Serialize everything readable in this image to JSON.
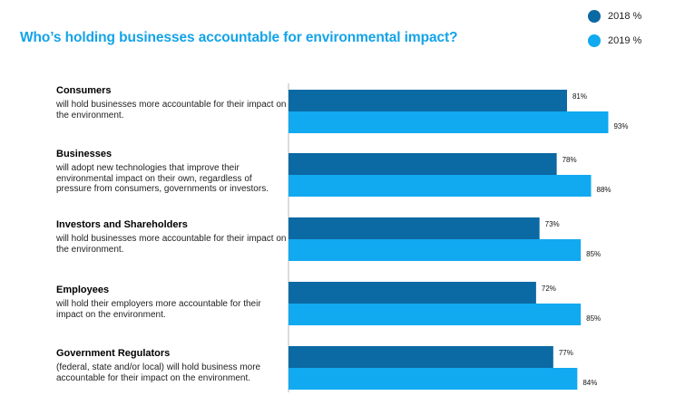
{
  "title": "Who’s holding businesses accountable for environmental impact?",
  "legend": [
    {
      "label": "2018 %",
      "color": "#0b69a3"
    },
    {
      "label": "2019 %",
      "color": "#11a9f0"
    }
  ],
  "categories": [
    {
      "name": "Consumers",
      "description": "will hold businesses more accountable for their impact on the environment."
    },
    {
      "name": "Businesses",
      "description": "will adopt new technologies that improve their environmental impact on their own, regardless of pressure from consumers, governments or investors."
    },
    {
      "name": "Investors and Shareholders",
      "description": "will hold businesses more accountable for their impact on the environment."
    },
    {
      "name": "Employees",
      "description": "will hold their employers more accountable for their impact on the environment."
    },
    {
      "name": "Government Regulators",
      "description": "(federal, state and/or local) will hold business more accountable for their impact on the environment."
    }
  ],
  "chart_data": {
    "type": "bar",
    "orientation": "horizontal",
    "title": "Who’s holding businesses accountable for environmental impact?",
    "categories": [
      "Consumers",
      "Businesses",
      "Investors and Shareholders",
      "Employees",
      "Government Regulators"
    ],
    "series": [
      {
        "name": "2018 %",
        "color": "#0b69a3",
        "values": [
          81,
          78,
          73,
          72,
          77
        ],
        "labels": [
          "81%",
          "78%",
          "73%",
          "72%",
          "77%"
        ]
      },
      {
        "name": "2019 %",
        "color": "#11a9f0",
        "values": [
          93,
          88,
          85,
          85,
          84
        ],
        "labels": [
          "93%",
          "88%",
          "85%",
          "85%",
          "84%"
        ]
      }
    ],
    "xlim": [
      0,
      100
    ],
    "grid": false,
    "legend_position": "top-right"
  }
}
